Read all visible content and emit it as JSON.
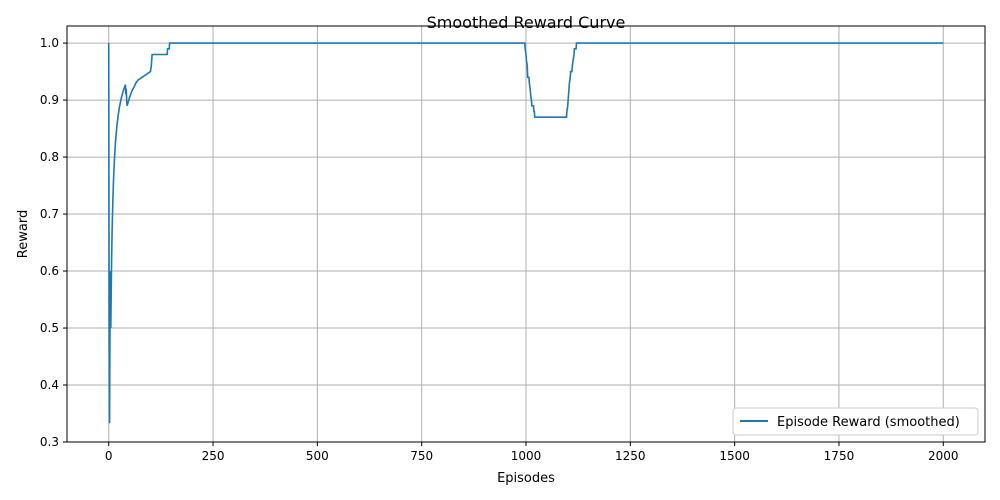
{
  "chart_data": {
    "type": "line",
    "title": "Smoothed Reward Curve",
    "xlabel": "Episodes",
    "ylabel": "Reward",
    "xlim": [
      -100,
      2100
    ],
    "ylim": [
      0.3,
      1.03
    ],
    "xticks": [
      0,
      250,
      500,
      750,
      1000,
      1250,
      1500,
      1750,
      2000
    ],
    "yticks": [
      0.3,
      0.4,
      0.5,
      0.6,
      0.7,
      0.8,
      0.9,
      1.0
    ],
    "xtick_labels": [
      "0",
      "250",
      "500",
      "750",
      "1000",
      "1250",
      "1500",
      "1750",
      "2000"
    ],
    "ytick_labels": [
      "0.3",
      "0.4",
      "0.5",
      "0.6",
      "0.7",
      "0.8",
      "0.9",
      "1.0"
    ],
    "grid": true,
    "legend_position": "bottom-right",
    "colors": {
      "series": "#1f77b4",
      "grid": "#b0b0b0"
    },
    "series": [
      {
        "name": "Episode Reward (smoothed)",
        "x": [
          0,
          1,
          2,
          3,
          4,
          5,
          6,
          7,
          8,
          10,
          12,
          14,
          16,
          18,
          20,
          23,
          26,
          30,
          34,
          38,
          40,
          41,
          42,
          43,
          44,
          46,
          50,
          55,
          60,
          65,
          70,
          80,
          90,
          100,
          102,
          104,
          110,
          120,
          130,
          140,
          141,
          145,
          146,
          200,
          400,
          600,
          800,
          997,
          998,
          1000,
          1001,
          1003,
          1004,
          1007,
          1008,
          1010,
          1011,
          1013,
          1014,
          1018,
          1019,
          1020,
          1021,
          1025,
          1026,
          1030,
          1050,
          1070,
          1090,
          1097,
          1098,
          1100,
          1101,
          1103,
          1104,
          1106,
          1107,
          1110,
          1111,
          1115,
          1116,
          1120,
          1121,
          1125,
          1126,
          1200,
          1500,
          1800,
          2000
        ],
        "y": [
          1.0,
          0.5,
          0.333,
          0.5,
          0.6,
          0.5,
          0.571,
          0.625,
          0.667,
          0.727,
          0.769,
          0.8,
          0.824,
          0.842,
          0.857,
          0.875,
          0.889,
          0.903,
          0.914,
          0.923,
          0.927,
          0.91,
          0.92,
          0.9,
          0.89,
          0.895,
          0.905,
          0.915,
          0.922,
          0.93,
          0.935,
          0.94,
          0.945,
          0.95,
          0.96,
          0.98,
          0.98,
          0.98,
          0.98,
          0.98,
          0.99,
          0.99,
          1.0,
          1.0,
          1.0,
          1.0,
          1.0,
          1.0,
          0.99,
          0.98,
          0.97,
          0.96,
          0.94,
          0.94,
          0.93,
          0.92,
          0.91,
          0.9,
          0.89,
          0.89,
          0.88,
          0.88,
          0.87,
          0.87,
          0.87,
          0.87,
          0.87,
          0.87,
          0.87,
          0.87,
          0.88,
          0.89,
          0.9,
          0.92,
          0.93,
          0.94,
          0.95,
          0.95,
          0.96,
          0.98,
          0.99,
          0.99,
          1.0,
          1.0,
          1.0,
          1.0,
          1.0,
          1.0,
          1.0
        ]
      }
    ]
  }
}
